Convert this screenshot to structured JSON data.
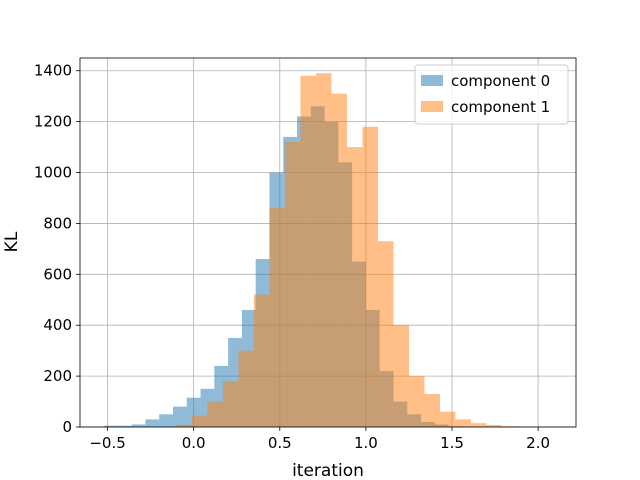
{
  "chart_data": {
    "type": "histogram",
    "xlabel": "iteration",
    "ylabel": "KL",
    "xlim": [
      -0.66,
      2.22
    ],
    "ylim": [
      0,
      1450
    ],
    "xticks": [
      -0.5,
      0.0,
      0.5,
      1.0,
      1.5,
      2.0
    ],
    "xtick_labels": [
      "−0.5",
      "0.0",
      "0.5",
      "1.0",
      "1.5",
      "2.0"
    ],
    "yticks": [
      0,
      200,
      400,
      600,
      800,
      1000,
      1200,
      1400
    ],
    "ytick_labels": [
      "0",
      "200",
      "400",
      "600",
      "800",
      "1000",
      "1200",
      "1400"
    ],
    "grid": true,
    "legend_position": "top-right",
    "series": [
      {
        "name": "component 0",
        "color": "#1f77b4",
        "opacity": 0.5,
        "bin_edges": [
          -0.52,
          -0.44,
          -0.36,
          -0.28,
          -0.2,
          -0.12,
          -0.04,
          0.04,
          0.12,
          0.2,
          0.28,
          0.36,
          0.44,
          0.52,
          0.6,
          0.68,
          0.76,
          0.84,
          0.92,
          1.0,
          1.08,
          1.16,
          1.24,
          1.32,
          1.4,
          1.48,
          1.56
        ],
        "counts": [
          5,
          5,
          10,
          30,
          50,
          80,
          115,
          150,
          240,
          350,
          460,
          660,
          1000,
          1140,
          1220,
          1260,
          1200,
          1040,
          650,
          460,
          220,
          100,
          50,
          20,
          10,
          3
        ]
      },
      {
        "name": "component 1",
        "color": "#ff7f0e",
        "opacity": 0.5,
        "bin_edges": [
          -0.1,
          -0.01,
          0.08,
          0.17,
          0.26,
          0.35,
          0.44,
          0.53,
          0.62,
          0.71,
          0.8,
          0.89,
          0.98,
          1.07,
          1.16,
          1.25,
          1.34,
          1.43,
          1.52,
          1.61,
          1.7,
          1.79,
          1.88,
          1.97,
          2.06
        ],
        "counts": [
          8,
          45,
          100,
          180,
          300,
          520,
          860,
          1120,
          1380,
          1390,
          1310,
          1100,
          1180,
          730,
          400,
          200,
          130,
          60,
          30,
          15,
          8,
          3,
          2,
          1
        ]
      }
    ]
  }
}
